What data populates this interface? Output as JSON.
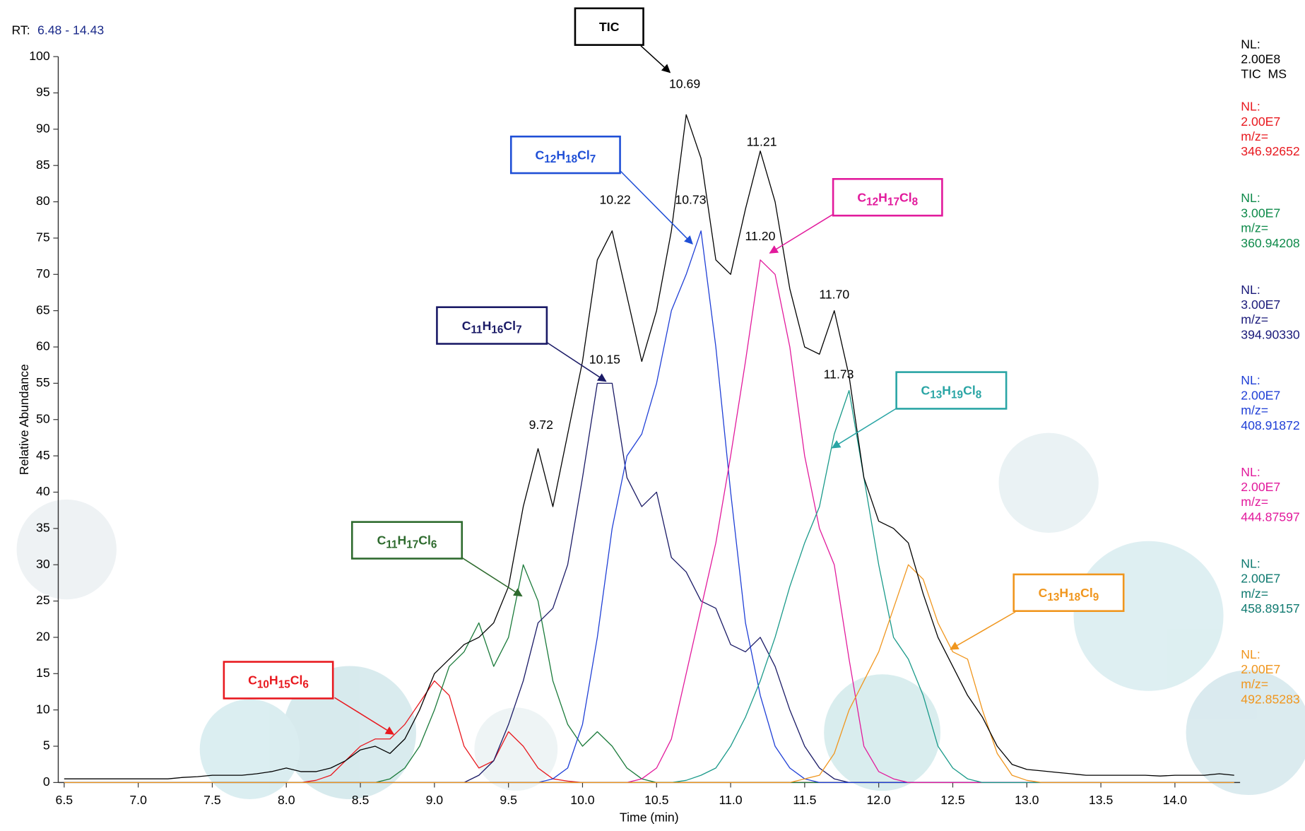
{
  "chart_data": {
    "type": "line",
    "rt_label": "RT:",
    "rt_range": "6.48 - 14.43",
    "ylabel": "Relative Abundance",
    "xlabel": "Time (min)",
    "nl_label": "NL:",
    "mz_label": "m/z=",
    "xlim": [
      6.46,
      14.44
    ],
    "ylim": [
      0,
      100
    ],
    "xticks": [
      6.5,
      {
        "value": 7,
        "label": "7.0"
      },
      7.5,
      {
        "value": 8,
        "label": "8.0"
      },
      8.5,
      {
        "value": 9,
        "label": "9.0"
      },
      9.5,
      {
        "value": 10,
        "label": "10.0"
      },
      10.5,
      {
        "value": 11,
        "label": "11.0"
      },
      11.5,
      {
        "value": 12,
        "label": "12.0"
      },
      12.5,
      {
        "value": 13,
        "label": "13.0"
      },
      13.5,
      {
        "value": 14,
        "label": "14.0"
      }
    ],
    "yticks": [
      0,
      5,
      10,
      15,
      20,
      25,
      30,
      35,
      40,
      45,
      50,
      55,
      60,
      65,
      70,
      75,
      80,
      85,
      90,
      95,
      100
    ],
    "x": [
      6.5,
      6.6,
      6.7,
      6.8,
      6.9,
      7.0,
      7.1,
      7.2,
      7.3,
      7.4,
      7.5,
      7.6,
      7.7,
      7.8,
      7.9,
      8.0,
      8.1,
      8.2,
      8.3,
      8.4,
      8.5,
      8.6,
      8.7,
      8.8,
      8.9,
      9.0,
      9.1,
      9.2,
      9.3,
      9.4,
      9.5,
      9.6,
      9.7,
      9.8,
      9.9,
      10.0,
      10.1,
      10.2,
      10.3,
      10.4,
      10.5,
      10.6,
      10.7,
      10.8,
      10.9,
      11.0,
      11.1,
      11.2,
      11.3,
      11.4,
      11.5,
      11.6,
      11.7,
      11.8,
      11.9,
      12.0,
      12.1,
      12.2,
      12.3,
      12.4,
      12.5,
      12.6,
      12.7,
      12.8,
      12.9,
      13.0,
      13.1,
      13.2,
      13.3,
      13.4,
      13.5,
      13.6,
      13.7,
      13.8,
      13.9,
      14.0,
      14.1,
      14.2,
      14.3,
      14.4
    ],
    "series": [
      {
        "name": "TIC",
        "color": "#000000",
        "nl": "2.00E8",
        "filter": "TIC  MS",
        "values": [
          0.5,
          0.5,
          0.5,
          0.5,
          0.5,
          0.5,
          0.5,
          0.5,
          0.7,
          0.8,
          1,
          1,
          1,
          1.2,
          1.5,
          2,
          1.5,
          1.5,
          2,
          3,
          4.5,
          5,
          4,
          6,
          10,
          15,
          17,
          19,
          20,
          22,
          27,
          38,
          46,
          38,
          48,
          58,
          72,
          76,
          67,
          58,
          65,
          76,
          92,
          86,
          72,
          70,
          79,
          87,
          80,
          68,
          60,
          59,
          65,
          56,
          42,
          36,
          35,
          33,
          26,
          20,
          16,
          12,
          9,
          5,
          2.5,
          1.8,
          1.6,
          1.4,
          1.2,
          1,
          1,
          1,
          1,
          1,
          0.9,
          1,
          1,
          1,
          1.2,
          1
        ]
      },
      {
        "name": "C10H15Cl6",
        "color": "#e8191f",
        "nl": "2.00E7",
        "mz": "346.92652",
        "values": [
          0,
          0,
          0,
          0,
          0,
          0,
          0,
          0,
          0,
          0,
          0,
          0,
          0,
          0,
          0,
          0,
          0,
          0.3,
          1,
          3,
          5,
          6,
          6,
          8,
          11,
          14,
          12,
          5,
          2,
          3,
          7,
          5,
          2,
          0.5,
          0.2,
          0,
          0,
          0,
          0,
          0,
          0,
          0,
          0,
          0,
          0,
          0,
          0,
          0,
          0,
          0,
          0,
          0,
          0,
          0,
          0,
          0,
          0,
          0,
          0,
          0,
          0,
          0,
          0,
          0,
          0,
          0,
          0,
          0,
          0,
          0,
          0,
          0,
          0,
          0,
          0,
          0,
          0,
          0,
          0,
          0
        ]
      },
      {
        "name": "C11H17Cl6",
        "color": "#1a7a3a",
        "nl": "3.00E7",
        "mz": "360.94208",
        "values": [
          0,
          0,
          0,
          0,
          0,
          0,
          0,
          0,
          0,
          0,
          0,
          0,
          0,
          0,
          0,
          0,
          0,
          0,
          0,
          0,
          0,
          0,
          0.5,
          2,
          5,
          10,
          16,
          18,
          22,
          16,
          20,
          30,
          25,
          14,
          8,
          5,
          7,
          5,
          2,
          0.5,
          0,
          0,
          0,
          0,
          0,
          0,
          0,
          0,
          0,
          0,
          0,
          0,
          0,
          0,
          0,
          0,
          0,
          0,
          0,
          0,
          0,
          0,
          0,
          0,
          0,
          0,
          0,
          0,
          0,
          0,
          0,
          0,
          0,
          0,
          0,
          0,
          0,
          0,
          0,
          0
        ]
      },
      {
        "name": "C11H16Cl7",
        "color": "#1a1a66",
        "nl": "3.00E7",
        "mz": "394.90330",
        "values": [
          0,
          0,
          0,
          0,
          0,
          0,
          0,
          0,
          0,
          0,
          0,
          0,
          0,
          0,
          0,
          0,
          0,
          0,
          0,
          0,
          0,
          0,
          0,
          0,
          0,
          0,
          0,
          0,
          1,
          3,
          8,
          14,
          22,
          24,
          30,
          42,
          55,
          55,
          42,
          38,
          40,
          31,
          29,
          25,
          24,
          19,
          18,
          20,
          16,
          10,
          5,
          2,
          0.5,
          0,
          0,
          0,
          0,
          0,
          0,
          0,
          0,
          0,
          0,
          0,
          0,
          0,
          0,
          0,
          0,
          0,
          0,
          0,
          0,
          0,
          0,
          0,
          0,
          0,
          0,
          0
        ]
      },
      {
        "name": "C12H18Cl7",
        "color": "#1f3fd6",
        "nl": "2.00E7",
        "mz": "408.91872",
        "values": [
          0,
          0,
          0,
          0,
          0,
          0,
          0,
          0,
          0,
          0,
          0,
          0,
          0,
          0,
          0,
          0,
          0,
          0,
          0,
          0,
          0,
          0,
          0,
          0,
          0,
          0,
          0,
          0,
          0,
          0,
          0,
          0,
          0,
          0.5,
          2,
          8,
          20,
          35,
          45,
          48,
          55,
          65,
          70,
          76,
          60,
          40,
          22,
          12,
          5,
          2,
          0.5,
          0,
          0,
          0,
          0,
          0,
          0,
          0,
          0,
          0,
          0,
          0,
          0,
          0,
          0,
          0,
          0,
          0,
          0,
          0,
          0,
          0,
          0,
          0,
          0,
          0,
          0,
          0,
          0,
          0
        ]
      },
      {
        "name": "C12H17Cl8",
        "color": "#e21a9c",
        "nl": "2.00E7",
        "mz": "444.87597",
        "values": [
          0,
          0,
          0,
          0,
          0,
          0,
          0,
          0,
          0,
          0,
          0,
          0,
          0,
          0,
          0,
          0,
          0,
          0,
          0,
          0,
          0,
          0,
          0,
          0,
          0,
          0,
          0,
          0,
          0,
          0,
          0,
          0,
          0,
          0,
          0,
          0,
          0,
          0,
          0,
          0.5,
          2,
          6,
          15,
          24,
          33,
          45,
          58,
          72,
          70,
          60,
          45,
          35,
          30,
          17,
          5,
          1.5,
          0.5,
          0,
          0,
          0,
          0,
          0,
          0,
          0,
          0,
          0,
          0,
          0,
          0,
          0,
          0,
          0,
          0,
          0,
          0,
          0,
          0,
          0,
          0,
          0
        ]
      },
      {
        "name": "C13H19Cl8",
        "color": "#1a9a8a",
        "nl": "2.00E7",
        "mz": "458.89157",
        "values": [
          0,
          0,
          0,
          0,
          0,
          0,
          0,
          0,
          0,
          0,
          0,
          0,
          0,
          0,
          0,
          0,
          0,
          0,
          0,
          0,
          0,
          0,
          0,
          0,
          0,
          0,
          0,
          0,
          0,
          0,
          0,
          0,
          0,
          0,
          0,
          0,
          0,
          0,
          0,
          0,
          0,
          0,
          0.3,
          1,
          2,
          5,
          9,
          14,
          20,
          27,
          33,
          38,
          48,
          54,
          42,
          30,
          20,
          17,
          12,
          5,
          2,
          0.5,
          0,
          0,
          0,
          0,
          0,
          0,
          0,
          0,
          0,
          0,
          0,
          0,
          0,
          0,
          0,
          0,
          0,
          0
        ]
      },
      {
        "name": "C13H18Cl9",
        "color": "#f0961e",
        "nl": "2.00E7",
        "mz": "492.85283",
        "values": [
          0,
          0,
          0,
          0,
          0,
          0,
          0,
          0,
          0,
          0,
          0,
          0,
          0,
          0,
          0,
          0,
          0,
          0,
          0,
          0,
          0,
          0,
          0,
          0,
          0,
          0,
          0,
          0,
          0,
          0,
          0,
          0,
          0,
          0,
          0,
          0,
          0,
          0,
          0,
          0,
          0,
          0,
          0,
          0,
          0,
          0,
          0,
          0,
          0,
          0,
          0.5,
          1,
          4,
          10,
          14,
          18,
          24,
          30,
          28,
          22,
          18,
          17,
          10,
          4,
          1,
          0.3,
          0,
          0,
          0,
          0,
          0,
          0,
          0,
          0,
          0,
          0,
          0,
          0,
          0,
          0
        ]
      }
    ],
    "peak_labels": [
      {
        "x": 10.69,
        "y": 95,
        "label": "10.69"
      },
      {
        "x": 11.21,
        "y": 87,
        "label": "11.21"
      },
      {
        "x": 10.22,
        "y": 79,
        "label": "10.22"
      },
      {
        "x": 10.73,
        "y": 79,
        "label": "10.73"
      },
      {
        "x": 11.2,
        "y": 74,
        "label": "11.20"
      },
      {
        "x": 11.7,
        "y": 66,
        "label": "11.70"
      },
      {
        "x": 10.15,
        "y": 57,
        "label": "10.15"
      },
      {
        "x": 11.73,
        "y": 55,
        "label": "11.73"
      },
      {
        "x": 9.72,
        "y": 48,
        "label": "9.72"
      }
    ]
  }
}
